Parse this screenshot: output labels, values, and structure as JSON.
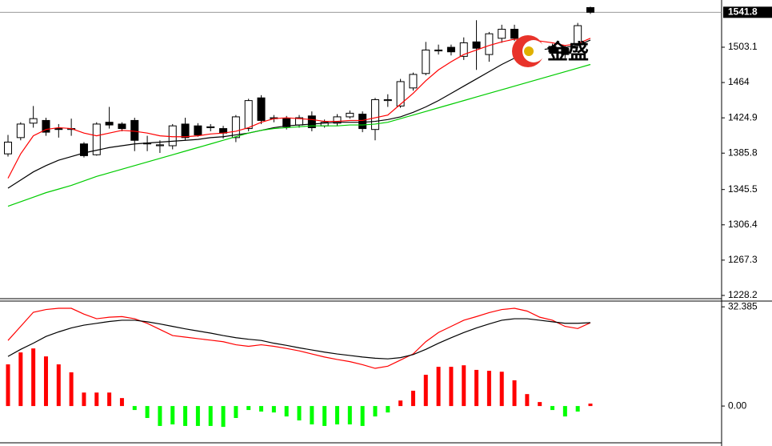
{
  "chart_data": [
    {
      "type": "candlestick",
      "ylim": [
        1225.5,
        1555.4
      ],
      "yticks": [
        1503.1,
        1464.0,
        1424.9,
        1385.8,
        1345.5,
        1306.4,
        1267.3,
        1228.2
      ],
      "last_price": 1541.8,
      "watermark": "金盛",
      "up_color": "#ffffff",
      "down_color": "#000000",
      "open": [
        1385,
        1403,
        1419,
        1422,
        1413,
        1412,
        1396,
        1384,
        1420,
        1418,
        1422,
        1396,
        1394,
        1394,
        1418,
        1416,
        1414,
        1413,
        1403,
        1413,
        1447,
        1424,
        1424,
        1417,
        1427,
        1416,
        1419,
        1426,
        1429,
        1412,
        1444,
        1438,
        1458,
        1474,
        1499,
        1503,
        1493,
        1509,
        1495,
        1513,
        1523,
        1510,
        1500,
        1504,
        1502,
        1506,
        1547
      ],
      "high": [
        1406,
        1420,
        1438,
        1425,
        1418,
        1424,
        1398,
        1420,
        1437,
        1420,
        1425,
        1405,
        1400,
        1418,
        1425,
        1419,
        1418,
        1416,
        1428,
        1446,
        1450,
        1428,
        1427,
        1428,
        1432,
        1423,
        1429,
        1433,
        1432,
        1447,
        1451,
        1468,
        1475,
        1509,
        1506,
        1506,
        1514,
        1533,
        1520,
        1528,
        1528,
        1516,
        1508,
        1507,
        1505,
        1530,
        1548
      ],
      "low": [
        1382,
        1400,
        1414,
        1405,
        1403,
        1405,
        1381,
        1383,
        1413,
        1410,
        1388,
        1388,
        1386,
        1390,
        1400,
        1404,
        1410,
        1402,
        1398,
        1410,
        1418,
        1420,
        1412,
        1414,
        1410,
        1414,
        1416,
        1424,
        1409,
        1400,
        1437,
        1436,
        1455,
        1472,
        1495,
        1494,
        1489,
        1478,
        1487,
        1508,
        1510,
        1494,
        1496,
        1495,
        1491,
        1502,
        1540
      ],
      "close": [
        1398,
        1418,
        1424,
        1409,
        1412,
        1413,
        1383,
        1418,
        1417,
        1413,
        1400,
        1397,
        1395,
        1416,
        1403,
        1406,
        1415,
        1408,
        1426,
        1444,
        1422,
        1425,
        1415,
        1425,
        1414,
        1420,
        1426,
        1430,
        1413,
        1445,
        1445,
        1465,
        1473,
        1500,
        1500,
        1498,
        1508,
        1502,
        1518,
        1523,
        1513,
        1498,
        1503,
        1498,
        1495,
        1527,
        1541.8
      ],
      "series": [
        {
          "color": "#ff0000",
          "values": [
            1358,
            1385,
            1405,
            1412,
            1414,
            1413,
            1408,
            1405,
            1408,
            1411,
            1410,
            1408,
            1405,
            1404,
            1404,
            1405,
            1407,
            1408,
            1410,
            1414,
            1420,
            1424,
            1425,
            1424,
            1423,
            1421,
            1421,
            1422,
            1422,
            1425,
            1428,
            1440,
            1452,
            1466,
            1478,
            1487,
            1495,
            1500,
            1505,
            1509,
            1512,
            1511,
            1510,
            1508,
            1505,
            1507,
            1513
          ]
        },
        {
          "color": "#000000",
          "values": [
            1347,
            1356,
            1365,
            1372,
            1378,
            1382,
            1386,
            1389,
            1392,
            1394,
            1396,
            1397,
            1398,
            1399,
            1400,
            1401,
            1403,
            1404,
            1406,
            1408,
            1411,
            1414,
            1416,
            1417,
            1418,
            1419,
            1420,
            1420,
            1420,
            1421,
            1423,
            1426,
            1431,
            1437,
            1444,
            1452,
            1460,
            1468,
            1476,
            1484,
            1491,
            1496,
            1500,
            1502,
            1503,
            1505,
            1511
          ]
        },
        {
          "color": "#00cc00",
          "values": [
            1327,
            1332,
            1337,
            1342,
            1346,
            1350,
            1355,
            1360,
            1364,
            1368,
            1372,
            1376,
            1380,
            1384,
            1388,
            1392,
            1396,
            1400,
            1404,
            1408,
            1411,
            1413,
            1414,
            1415,
            1416,
            1416,
            1416,
            1417,
            1417,
            1418,
            1420,
            1424,
            1428,
            1432,
            1436,
            1440,
            1444,
            1448,
            1452,
            1456,
            1460,
            1464,
            1468,
            1472,
            1476,
            1480,
            1484
          ]
        }
      ]
    },
    {
      "type": "macd",
      "ylim": [
        -12,
        34
      ],
      "yticks": [
        32.385,
        {
          "value": 0,
          "label": "0.00"
        }
      ],
      "positive_color": "#ff0000",
      "negative_color": "#00ff00",
      "histogram": [
        13.6,
        17.5,
        18.8,
        16.2,
        13.6,
        11,
        4.4,
        4.4,
        4.4,
        2.6,
        -1.3,
        -3.9,
        -6.5,
        -6,
        -6.5,
        -6.5,
        -6.5,
        -6.8,
        -3.9,
        -1.3,
        -1.8,
        -2.1,
        -3.4,
        -4.7,
        -6,
        -6.5,
        -6,
        -6,
        -6.5,
        -3.4,
        -2.1,
        1.8,
        5,
        10.2,
        12.8,
        12.8,
        13.3,
        11.8,
        11.5,
        11.2,
        8.4,
        3.9,
        1.3,
        -1.3,
        -3.4,
        -1.8,
        0.8
      ],
      "series": [
        {
          "color": "#ff0000",
          "values": [
            21.4,
            26,
            30.6,
            31.5,
            31.9,
            31.9,
            30,
            28.5,
            29,
            29.2,
            28.5,
            27,
            25,
            23,
            22.5,
            22,
            21.5,
            21,
            20,
            19.5,
            20,
            19.5,
            18.8,
            18,
            17,
            16,
            15.2,
            14.5,
            13.5,
            12.3,
            13,
            15,
            17,
            21,
            24,
            26,
            28,
            29.2,
            30.5,
            31.5,
            31.9,
            31,
            29,
            28,
            26,
            25.3,
            27.2
          ]
        },
        {
          "color": "#000000",
          "values": [
            16.2,
            18.5,
            20.5,
            22.7,
            24.2,
            25.5,
            26.4,
            27,
            27.6,
            28,
            28,
            27.5,
            26.8,
            26,
            25.2,
            24.5,
            23.8,
            23,
            22.3,
            21.8,
            21.4,
            20.5,
            19.8,
            19,
            18.3,
            17.6,
            17,
            16.5,
            16,
            15.6,
            15.4,
            15.8,
            16.8,
            18.5,
            20.5,
            22.3,
            24,
            25.5,
            26.8,
            28,
            28.5,
            28.5,
            28,
            27.5,
            27,
            27,
            27.2
          ]
        }
      ]
    }
  ]
}
